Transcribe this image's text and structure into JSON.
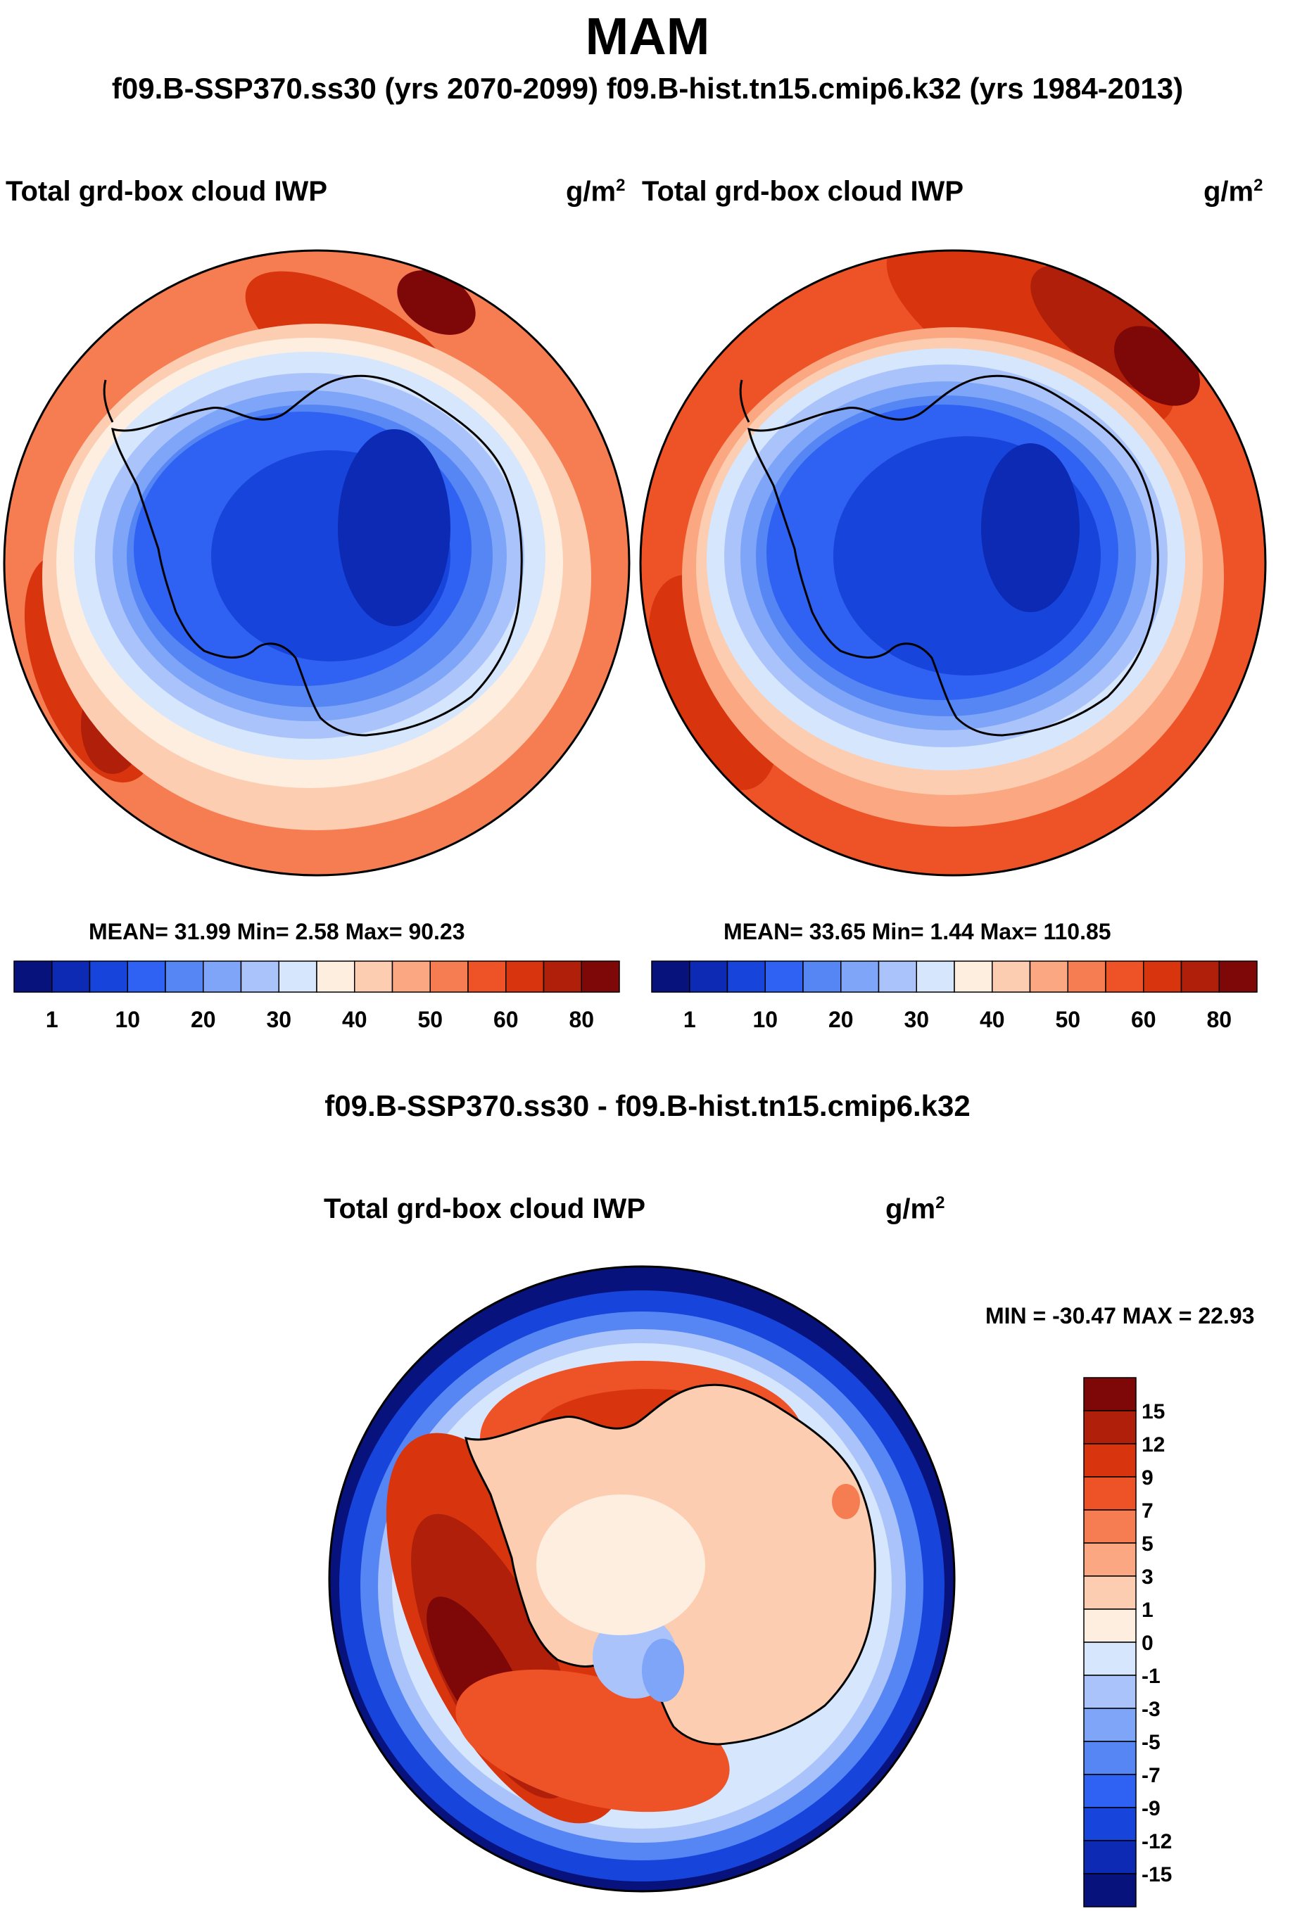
{
  "page": {
    "season": "MAM",
    "runs": "f09.B-SSP370.ss30 (yrs 2070-2099)  f09.B-hist.tn15.cmip6.k32 (yrs 1984-2013)"
  },
  "panels": [
    {
      "variable": "Total grd-box cloud IWP",
      "units_base": "g/m",
      "units_exp": "2",
      "stats": "MEAN=  31.99  Min=   2.58  Max=  90.23"
    },
    {
      "variable": "Total grd-box cloud IWP",
      "units_base": "g/m",
      "units_exp": "2",
      "stats": "MEAN=  33.65  Min=   1.44  Max= 110.85"
    }
  ],
  "diff": {
    "title": "f09.B-SSP370.ss30 - f09.B-hist.tn15.cmip6.k32",
    "variable": "Total grd-box cloud IWP",
    "units_base": "g/m",
    "units_exp": "2",
    "minmax": "MIN = -30.47 MAX =  22.93"
  },
  "chart_data": [
    {
      "type": "heatmap",
      "projection": "south-polar-stereographic",
      "title": "Total grd-box cloud IWP",
      "units": "g/m2",
      "mean": 31.99,
      "min": 2.58,
      "max": 90.23,
      "colorbar": {
        "levels": [
          1,
          5,
          10,
          15,
          20,
          25,
          30,
          35,
          40,
          45,
          50,
          55,
          60,
          70,
          80
        ],
        "tick_labels": [
          "1",
          "10",
          "20",
          "30",
          "40",
          "50",
          "60",
          "80"
        ],
        "colors": [
          "#08127d",
          "#0c2ab4",
          "#1744da",
          "#2f62f2",
          "#5686f4",
          "#7ea5f8",
          "#aac4fb",
          "#d6e6fd",
          "#fdeee0",
          "#fccdb0",
          "#fba882",
          "#f67d52",
          "#ee5327",
          "#d8340e",
          "#b01f0a",
          "#7e0707"
        ]
      }
    },
    {
      "type": "heatmap",
      "projection": "south-polar-stereographic",
      "title": "Total grd-box cloud IWP",
      "units": "g/m2",
      "mean": 33.65,
      "min": 1.44,
      "max": 110.85,
      "colorbar": {
        "levels": [
          1,
          5,
          10,
          15,
          20,
          25,
          30,
          35,
          40,
          45,
          50,
          55,
          60,
          70,
          80
        ],
        "tick_labels": [
          "1",
          "10",
          "20",
          "30",
          "40",
          "50",
          "60",
          "80"
        ],
        "colors": [
          "#08127d",
          "#0c2ab4",
          "#1744da",
          "#2f62f2",
          "#5686f4",
          "#7ea5f8",
          "#aac4fb",
          "#d6e6fd",
          "#fdeee0",
          "#fccdb0",
          "#fba882",
          "#f67d52",
          "#ee5327",
          "#d8340e",
          "#b01f0a",
          "#7e0707"
        ]
      }
    },
    {
      "type": "heatmap",
      "projection": "south-polar-stereographic",
      "title": "f09.B-SSP370.ss30 - f09.B-hist.tn15.cmip6.k32",
      "units": "g/m2",
      "min": -30.47,
      "max": 22.93,
      "colorbar": {
        "levels": [
          15,
          12,
          9,
          7,
          5,
          3,
          1,
          0,
          -1,
          -3,
          -5,
          -7,
          -9,
          -12,
          -15
        ],
        "tick_labels": [
          "15",
          "12",
          "9",
          "7",
          "5",
          "3",
          "1",
          "0",
          "-1",
          "-3",
          "-5",
          "-7",
          "-9",
          "-12",
          "-15"
        ],
        "colors": [
          "#7e0707",
          "#b01f0a",
          "#d8340e",
          "#ee5327",
          "#f67d52",
          "#fba882",
          "#fccdb0",
          "#fdeee0",
          "#d6e6fd",
          "#aac4fb",
          "#7ea5f8",
          "#5686f4",
          "#2f62f2",
          "#1744da",
          "#0c2ab4",
          "#08127d"
        ]
      }
    }
  ]
}
